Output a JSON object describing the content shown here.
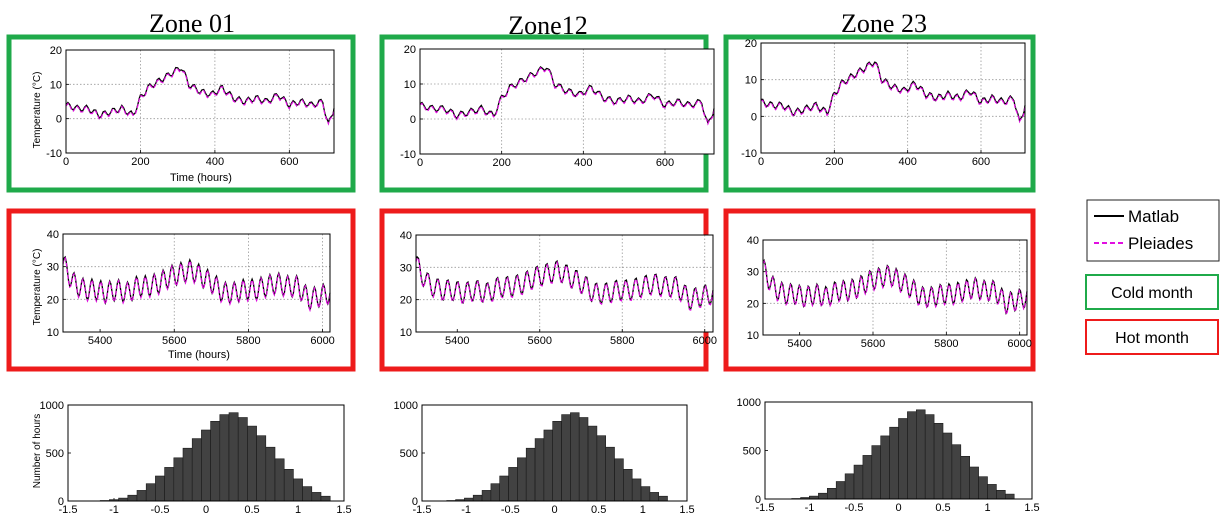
{
  "colors": {
    "cold": "#1faa4a",
    "hot": "#ee1b1b",
    "matlab": "#000000",
    "pleiades": "#e10ee1",
    "bar": "#424242"
  },
  "zones": [
    "Zone 01",
    "Zone12",
    "Zone 23"
  ],
  "legend": {
    "matlab": "Matlab",
    "pleiades": "Pleiades"
  },
  "tags": {
    "cold": "Cold month",
    "hot": "Hot month"
  },
  "labels": {
    "temperature": "Temperature (°C)",
    "time": "Time (hours)",
    "number_of_hours": "Number of hours"
  },
  "chart_data": [
    {
      "type": "line",
      "row": "cold",
      "ylim": [
        -10,
        20
      ],
      "xlim": [
        0,
        720
      ],
      "xticks": [
        0,
        200,
        400,
        600
      ],
      "yticks": [
        -10,
        0,
        10,
        20
      ],
      "grid": true,
      "series": [
        {
          "name": "Matlab"
        },
        {
          "name": "Pleiades"
        }
      ],
      "x": [
        0,
        30,
        60,
        90,
        120,
        150,
        180,
        200,
        220,
        250,
        280,
        310,
        330,
        360,
        390,
        420,
        450,
        480,
        510,
        540,
        570,
        600,
        630,
        660,
        690,
        705,
        720
      ],
      "y": [
        4,
        3,
        3,
        1,
        2,
        3,
        1,
        6,
        9,
        11,
        13,
        15,
        10,
        8,
        7,
        9,
        6,
        5,
        6,
        5,
        7,
        4,
        5,
        4,
        5,
        -2,
        3
      ]
    },
    {
      "type": "line",
      "row": "hot",
      "ylim": [
        10,
        40
      ],
      "xlim": [
        5300,
        6020
      ],
      "xticks": [
        5400,
        5600,
        5800,
        6000
      ],
      "yticks": [
        10,
        20,
        30,
        40
      ],
      "grid": true,
      "series": [
        {
          "name": "Matlab"
        },
        {
          "name": "Pleiades"
        }
      ],
      "baseline": [
        31,
        25,
        23,
        23,
        22,
        23,
        22,
        24,
        24,
        25,
        27,
        28,
        29,
        27,
        25,
        22,
        22,
        23,
        23,
        24,
        25,
        24,
        24,
        20,
        21,
        22
      ],
      "amplitude": 3.2,
      "cycle_hours": 24
    },
    {
      "type": "bar",
      "row": "histogram",
      "ylim": [
        0,
        1000
      ],
      "xlim": [
        -1.5,
        1.5
      ],
      "xticks": [
        -1.5,
        -1,
        -0.5,
        0,
        0.5,
        1,
        1.5
      ],
      "yticks": [
        0,
        500,
        1000
      ],
      "bin_start": -1.2,
      "bin_width": 0.1,
      "values": [
        5,
        15,
        30,
        60,
        110,
        180,
        260,
        350,
        450,
        550,
        650,
        740,
        830,
        900,
        920,
        870,
        780,
        680,
        560,
        440,
        330,
        230,
        150,
        90,
        50
      ]
    }
  ]
}
